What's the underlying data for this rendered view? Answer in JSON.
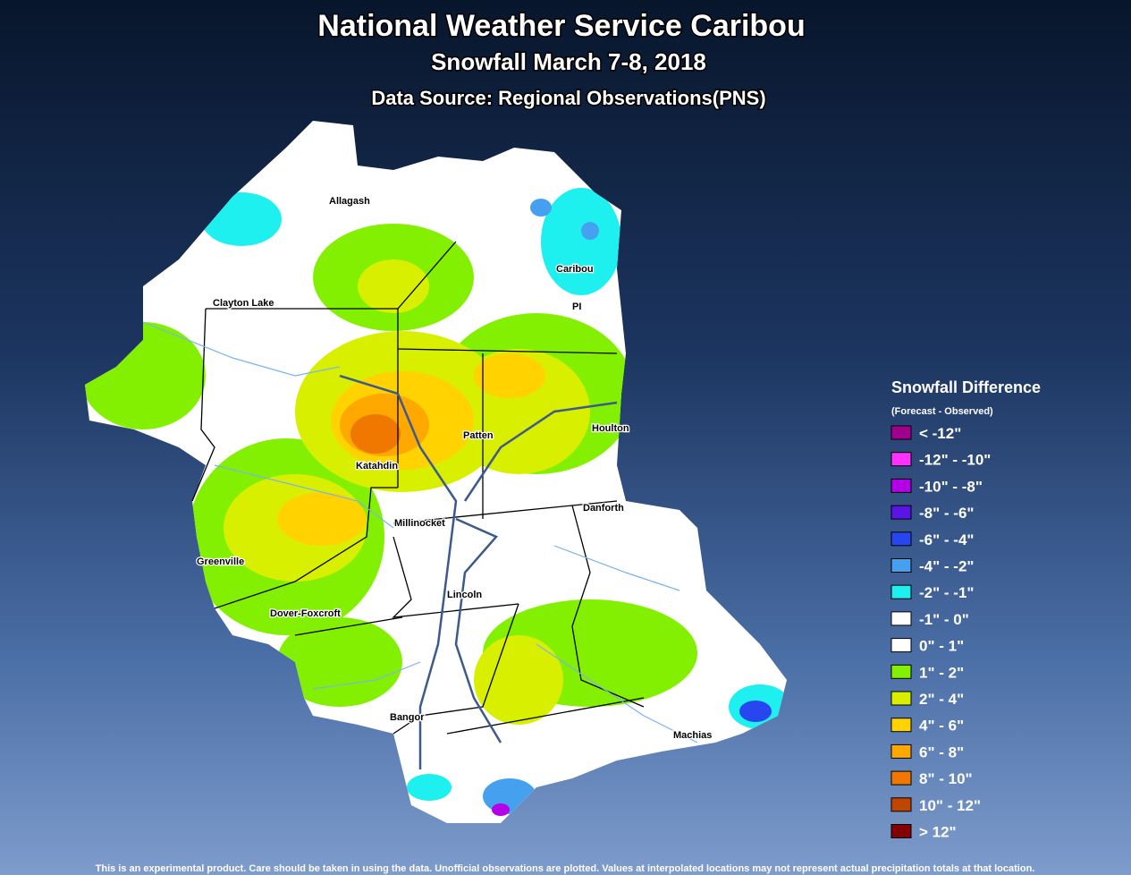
{
  "header": {
    "title": "National Weather Service Caribou",
    "subtitle": "Snowfall March 7-8, 2018",
    "source": "Data Source: Regional Observations(PNS)"
  },
  "legend": {
    "title": "Snowfall Difference",
    "subtitle": "(Forecast - Observed)",
    "items": [
      {
        "label": "< -12\"",
        "color": "#a0008c"
      },
      {
        "label": "-12\" - -10\"",
        "color": "#ff33ff"
      },
      {
        "label": "-10\" - -8\"",
        "color": "#b400e6"
      },
      {
        "label": "-8\" - -6\"",
        "color": "#5a14e6"
      },
      {
        "label": "-6\" - -4\"",
        "color": "#2846f0"
      },
      {
        "label": "-4\" - -2\"",
        "color": "#46a0f0"
      },
      {
        "label": "-2\" - -1\"",
        "color": "#1ef0f0"
      },
      {
        "label": "-1\" - 0\"",
        "color": "#ffffff"
      },
      {
        "label": "0\" - 1\"",
        "color": "#ffffff"
      },
      {
        "label": "1\" - 2\"",
        "color": "#82f000"
      },
      {
        "label": "2\" - 4\"",
        "color": "#d8f000"
      },
      {
        "label": "4\" - 6\"",
        "color": "#ffd200"
      },
      {
        "label": "6\" - 8\"",
        "color": "#ffa800"
      },
      {
        "label": "8\" - 10\"",
        "color": "#f07800"
      },
      {
        "label": "10\" - 12\"",
        "color": "#c04600"
      },
      {
        "label": "> 12\"",
        "color": "#820000"
      }
    ]
  },
  "cities": [
    "Allagash",
    "Caribou",
    "PI",
    "Clayton Lake",
    "Patten",
    "Houlton",
    "Katahdin",
    "Millinocket",
    "Danforth",
    "Greenville",
    "Lincoln",
    "Dover-Foxcroft",
    "Bangor",
    "Machias"
  ],
  "footer": "This is an experimental product. Care should be taken in using the data. Unofficial observations are plotted. Values at interpolated locations may not represent actual precipitation totals at that location."
}
